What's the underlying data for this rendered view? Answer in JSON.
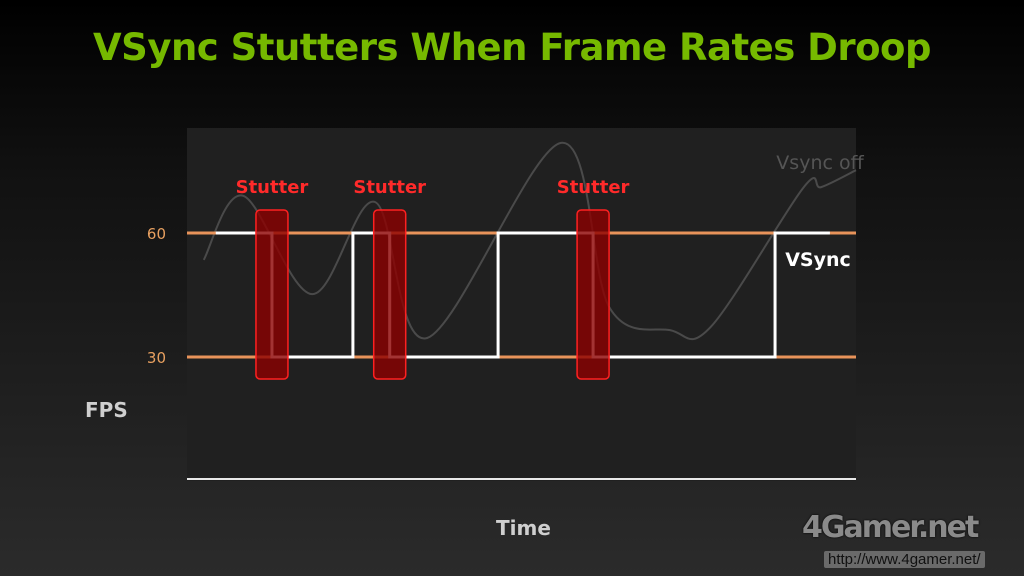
{
  "chart_data": {
    "type": "line",
    "title": "VSync Stutters When Frame Rates Droop",
    "xlabel": "Time",
    "ylabel": "FPS",
    "ylim": [
      0,
      85
    ],
    "xlim": [
      0,
      100
    ],
    "yticks": [
      60,
      30
    ],
    "ytick_labels": [
      "60",
      "30"
    ],
    "grid": false,
    "reference_lines": [
      {
        "y": 60,
        "color": "#e8935a"
      },
      {
        "y": 30,
        "color": "#e8935a"
      }
    ],
    "series": [
      {
        "name": "Vsync off",
        "color": "#4a4a4a",
        "x": [
          2.5,
          8.4,
          18.7,
          28.1,
          35.9,
          55.9,
          63.1,
          72.2,
          78.3,
          92.1,
          94.8,
          100
        ],
        "y": [
          53.5,
          69,
          45.2,
          67.5,
          34.6,
          81.8,
          42.1,
          36.5,
          37.3,
          70.9,
          71.1,
          75.2
        ]
      },
      {
        "name": "VSync",
        "color": "#ffffff",
        "step": true,
        "x": [
          4.3,
          12.7,
          12.7,
          24.8,
          24.8,
          30.3,
          30.3,
          46.5,
          46.5,
          60.7,
          60.7,
          87.9,
          87.9,
          96.1
        ],
        "y": [
          60,
          60,
          30,
          30,
          60,
          60,
          30,
          30,
          60,
          60,
          30,
          30,
          60,
          60
        ]
      }
    ],
    "annotations": [
      {
        "text": "Stutter",
        "x": 12.7,
        "color": "#ff2a2a"
      },
      {
        "text": "Stutter",
        "x": 30.3,
        "color": "#ff2a2a"
      },
      {
        "text": "Stutter",
        "x": 60.7,
        "color": "#ff2a2a"
      }
    ]
  },
  "watermark": {
    "logo": "4Gamer.net",
    "url": "http://www.4gamer.net/"
  }
}
